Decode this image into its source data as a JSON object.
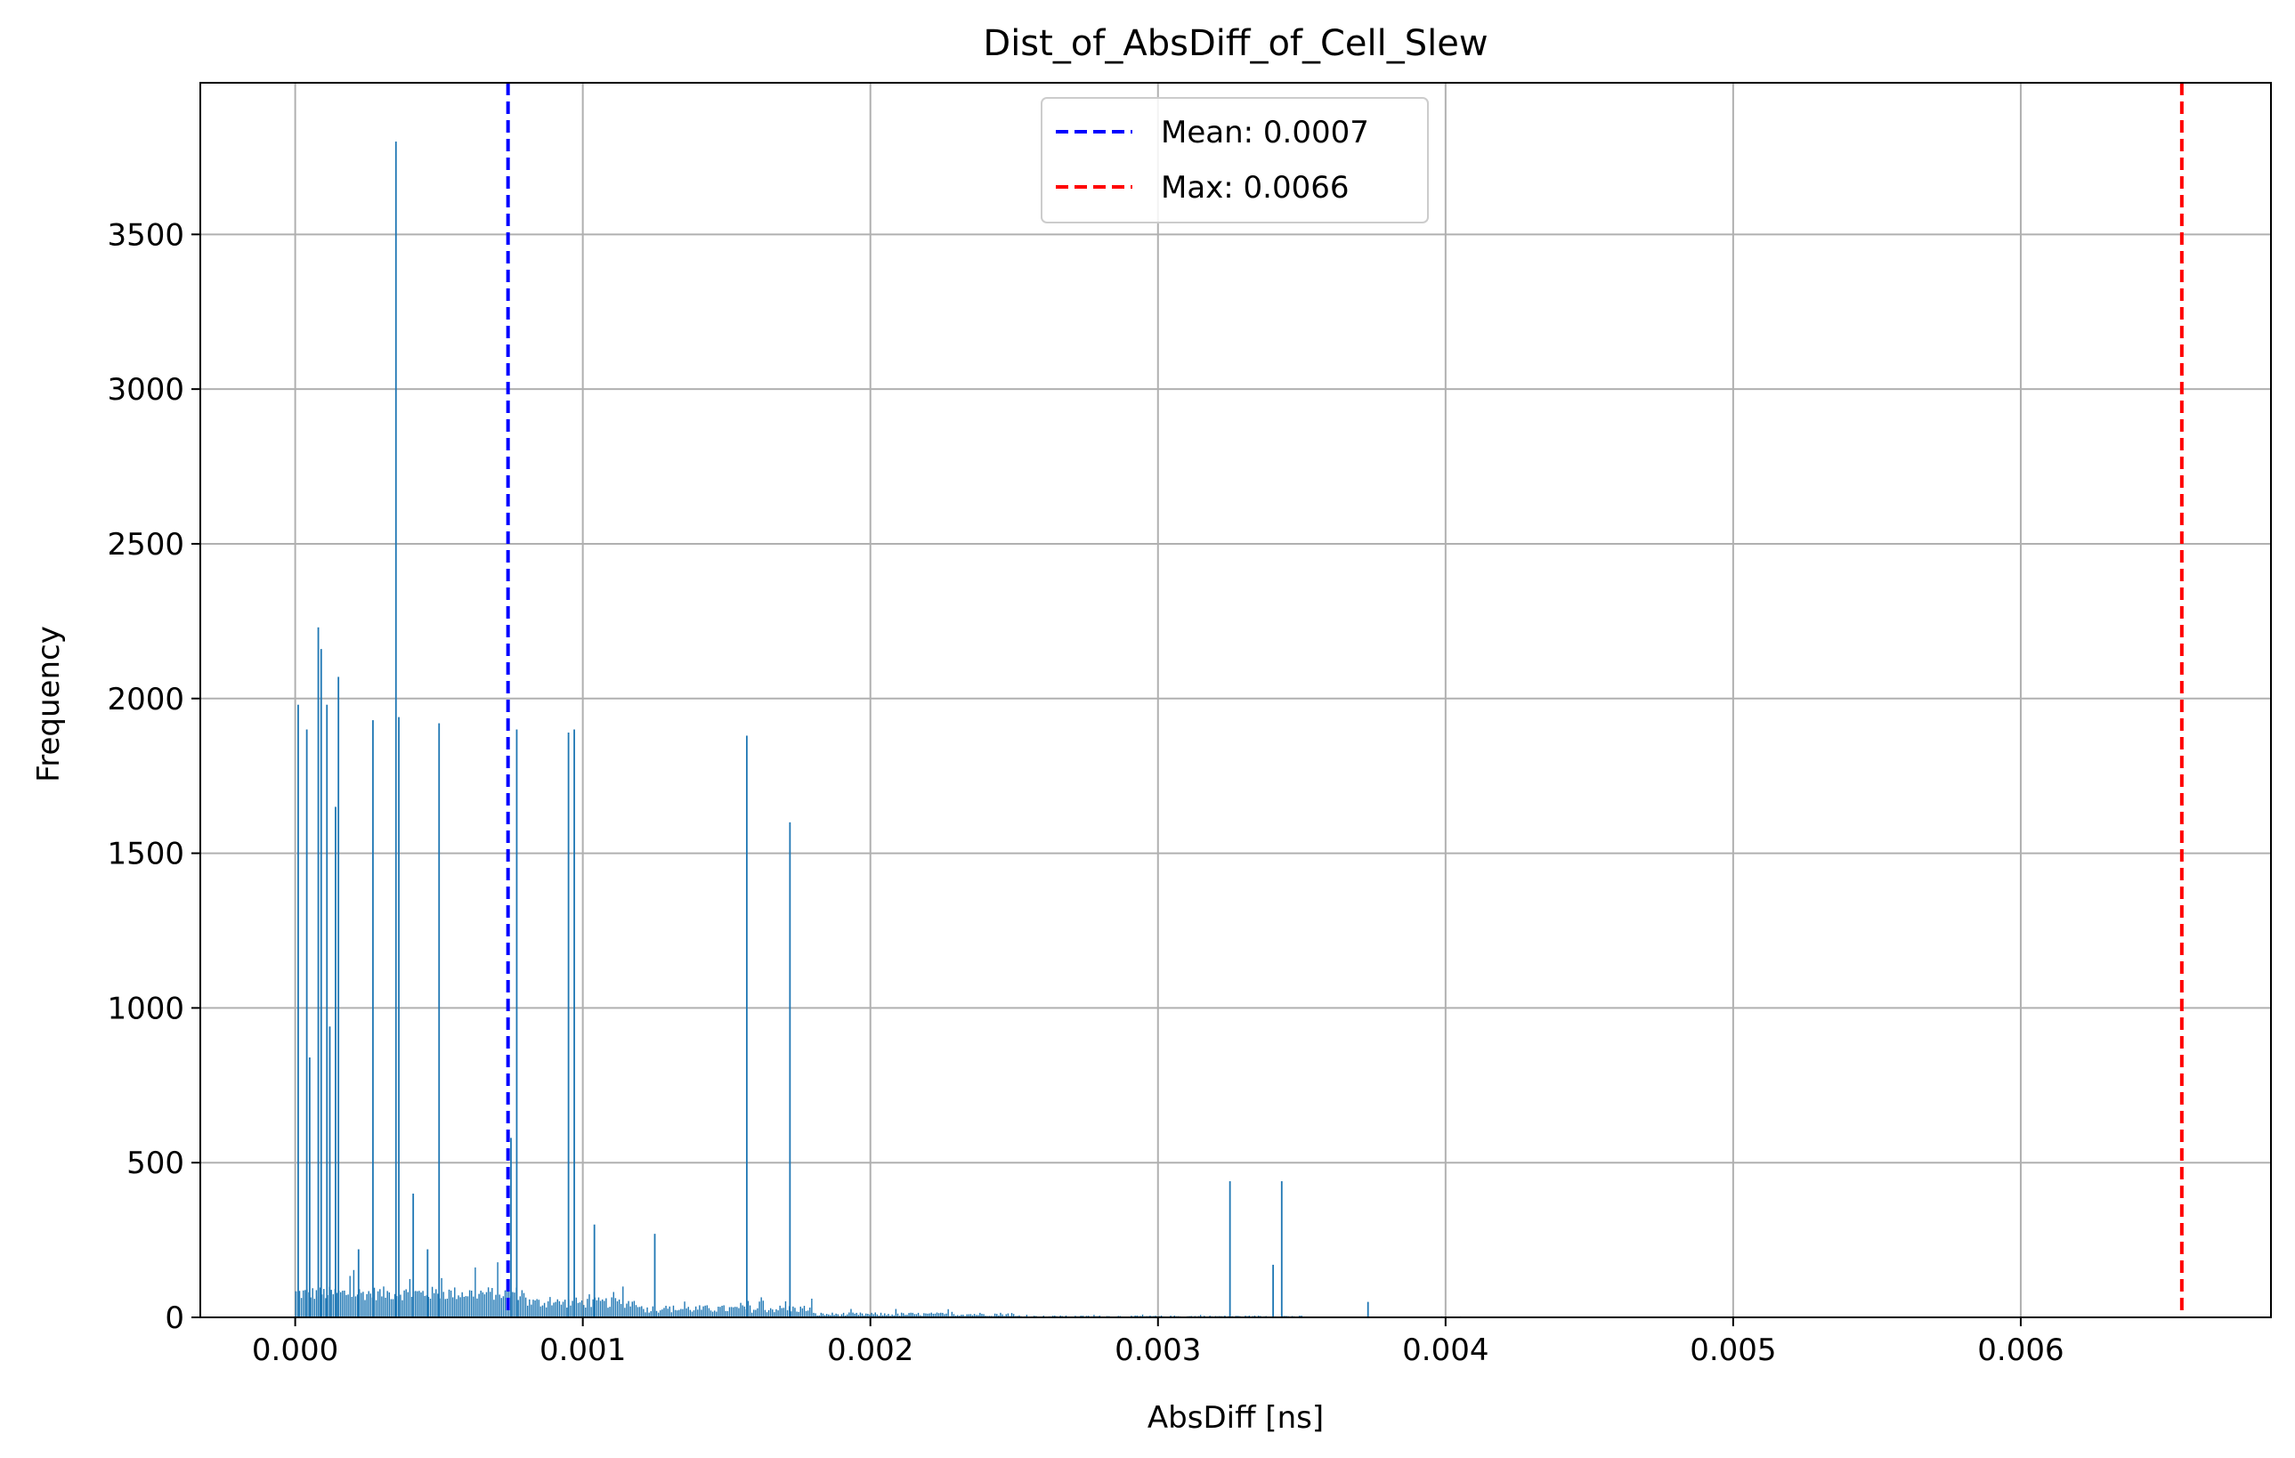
{
  "chart_data": {
    "type": "bar",
    "title": "Dist_of_AbsDiff_of_Cell_Slew",
    "xlabel": "AbsDiff [ns]",
    "ylabel": "Frequency",
    "xlim": [
      -0.00033,
      0.00687
    ],
    "ylim": [
      0,
      3990
    ],
    "x_ticks": [
      "0.000",
      "0.001",
      "0.002",
      "0.003",
      "0.004",
      "0.005",
      "0.006"
    ],
    "x_tick_values": [
      0.0,
      0.001,
      0.002,
      0.003,
      0.004,
      0.005,
      0.006
    ],
    "y_ticks": [
      "0",
      "500",
      "1000",
      "1500",
      "2000",
      "2500",
      "3000",
      "3500"
    ],
    "y_tick_values": [
      0,
      500,
      1000,
      1500,
      2000,
      2500,
      3000,
      3500
    ],
    "grid": true,
    "legend_position": "upper center",
    "bar_color": "#1f77b4",
    "spikes": [
      {
        "x": 1e-05,
        "y": 1980
      },
      {
        "x": 4e-05,
        "y": 1900
      },
      {
        "x": 5e-05,
        "y": 840
      },
      {
        "x": 8e-05,
        "y": 2230
      },
      {
        "x": 9e-05,
        "y": 2160
      },
      {
        "x": 0.00011,
        "y": 1980
      },
      {
        "x": 0.00012,
        "y": 940
      },
      {
        "x": 0.00014,
        "y": 1650
      },
      {
        "x": 0.00015,
        "y": 2070
      },
      {
        "x": 0.00022,
        "y": 220
      },
      {
        "x": 0.00027,
        "y": 1930
      },
      {
        "x": 0.00035,
        "y": 3800
      },
      {
        "x": 0.00036,
        "y": 1940
      },
      {
        "x": 0.00041,
        "y": 400
      },
      {
        "x": 0.00046,
        "y": 220
      },
      {
        "x": 0.0005,
        "y": 1920
      },
      {
        "x": 0.00075,
        "y": 580
      },
      {
        "x": 0.00077,
        "y": 1900
      },
      {
        "x": 0.00095,
        "y": 1890
      },
      {
        "x": 0.00097,
        "y": 1900
      },
      {
        "x": 0.00104,
        "y": 300
      },
      {
        "x": 0.00125,
        "y": 270
      },
      {
        "x": 0.00157,
        "y": 1880
      },
      {
        "x": 0.00172,
        "y": 1600
      },
      {
        "x": 0.00325,
        "y": 440
      },
      {
        "x": 0.0034,
        "y": 170
      },
      {
        "x": 0.00343,
        "y": 440
      },
      {
        "x": 0.00373,
        "y": 50
      }
    ],
    "series": [
      {
        "name": "Mean: 0.0007",
        "type": "vline",
        "x": 0.00074,
        "color": "#0000ff"
      },
      {
        "name": "Max: 0.0066",
        "type": "vline",
        "x": 0.00656,
        "color": "#ff0000"
      }
    ],
    "legend": [
      "Mean: 0.0007",
      "Max: 0.0066"
    ]
  }
}
